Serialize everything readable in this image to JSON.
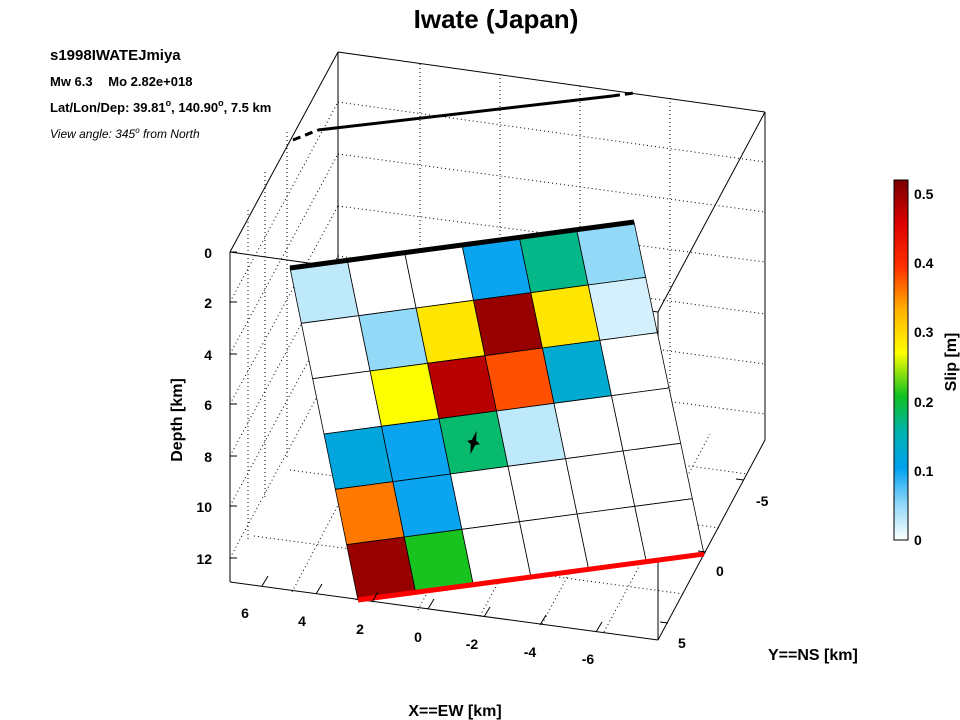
{
  "chart_data": {
    "type": "heatmap",
    "title": "Iwate (Japan)",
    "event_id": "s1998IWATEJmiya",
    "mw_label": "Mw 6.3",
    "mo_label": "Mo 2.82e+018",
    "latlon_prefix": "Lat/Lon/Dep: ",
    "lat": "39.81",
    "lon": "140.90",
    "degree_mark": "o",
    "dep": ", 7.5 km",
    "view_prefix": "View angle: 345",
    "view_suffix": " from North",
    "xlabel": "X==EW [km]",
    "ylabel": "Y==NS [km]",
    "zlabel": "Depth [km]",
    "colorbar_label": "Slip [m]",
    "z_ticks": [
      "0",
      "2",
      "4",
      "6",
      "8",
      "10",
      "12"
    ],
    "x_ticks": [
      "6",
      "4",
      "2",
      "0",
      "-2",
      "-4",
      "-6"
    ],
    "y_ticks": [
      "-5",
      "0",
      "5"
    ],
    "cb_ticks": [
      "0.5",
      "0.4",
      "0.3",
      "0.2",
      "0.1",
      "0"
    ],
    "clim": [
      0,
      0.52
    ],
    "slip_grid_down_dip_by_along_strike": [
      [
        0.03,
        0.0,
        0.0,
        0.1,
        0.17,
        0.05
      ],
      [
        0.0,
        0.05,
        0.29,
        0.5,
        0.29,
        0.02
      ],
      [
        0.0,
        0.27,
        0.48,
        0.38,
        0.13,
        0.0
      ],
      [
        0.12,
        0.1,
        0.18,
        0.03,
        0.0,
        0.0
      ],
      [
        0.36,
        0.1,
        0.0,
        0.0,
        0.0,
        0.0
      ],
      [
        0.5,
        0.21,
        0.0,
        0.0,
        0.0,
        0.0
      ]
    ],
    "hypocenter_cell": [
      3,
      2
    ],
    "colors": {
      "top_edge": "#000000",
      "bottom_edge": "#ff0000",
      "grid": "#000000"
    }
  }
}
